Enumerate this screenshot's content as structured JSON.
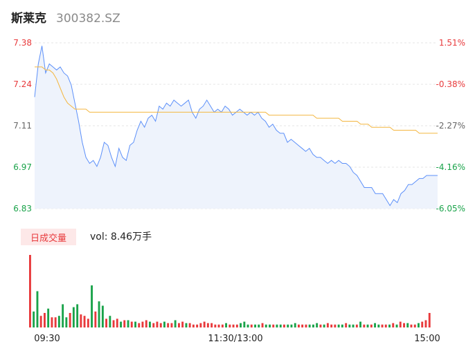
{
  "header": {
    "name": "斯莱克",
    "code": "300382.SZ"
  },
  "volume": {
    "tab_label": "日成交量",
    "summary": "vol: 8.46万手"
  },
  "colors": {
    "price_line": "#5b8ff9",
    "avg_line": "#f4b63f",
    "area_fill": "#eef3fc",
    "up": "#e8393b",
    "down": "#1aa34a",
    "grid": "#e6e6e6"
  },
  "chart_data": [
    {
      "type": "line",
      "y_left_ticks": [
        "7.38",
        "7.24",
        "7.11",
        "6.97",
        "6.83"
      ],
      "y_right_ticks": [
        "1.51%",
        "-0.38%",
        "-2.27%",
        "-4.16%",
        "-6.05%"
      ],
      "ylim": [
        6.83,
        7.38
      ],
      "x_ticks": [
        "09:30",
        "11:30/13:00",
        "15:00"
      ],
      "grid": true,
      "series": [
        {
          "values": [
            7.2,
            7.31,
            7.37,
            7.28,
            7.31,
            7.3,
            7.29,
            7.3,
            7.28,
            7.27,
            7.24,
            7.18,
            7.12,
            7.05,
            7.0,
            6.98,
            6.99,
            6.97,
            7.0,
            7.05,
            7.04,
            7.0,
            6.97,
            7.03,
            7.0,
            6.99,
            7.04,
            7.05,
            7.09,
            7.12,
            7.1,
            7.13,
            7.14,
            7.12,
            7.17,
            7.16,
            7.18,
            7.17,
            7.19,
            7.18,
            7.17,
            7.18,
            7.19,
            7.15,
            7.13,
            7.16,
            7.17,
            7.19,
            7.17,
            7.15,
            7.16,
            7.15,
            7.17,
            7.16,
            7.14,
            7.15,
            7.16,
            7.15,
            7.14,
            7.15,
            7.14,
            7.15,
            7.13,
            7.12,
            7.1,
            7.11,
            7.09,
            7.08,
            7.08,
            7.05,
            7.06,
            7.05,
            7.04,
            7.03,
            7.02,
            7.03,
            7.01,
            7.0,
            7.0,
            6.99,
            6.98,
            6.99,
            6.98,
            6.99,
            6.98,
            6.98,
            6.97,
            6.95,
            6.94,
            6.92,
            6.9,
            6.9,
            6.9,
            6.88,
            6.88,
            6.88,
            6.86,
            6.84,
            6.86,
            6.85,
            6.88,
            6.89,
            6.91,
            6.91,
            6.92,
            6.93,
            6.93,
            6.94,
            6.94,
            6.94,
            6.94
          ]
        },
        {
          "values": [
            7.3,
            7.3,
            7.3,
            7.29,
            7.29,
            7.28,
            7.26,
            7.23,
            7.2,
            7.18,
            7.17,
            7.16,
            7.16,
            7.16,
            7.16,
            7.15,
            7.15,
            7.15,
            7.15,
            7.15,
            7.15,
            7.15,
            7.15,
            7.15,
            7.15,
            7.15,
            7.15,
            7.15,
            7.15,
            7.15,
            7.15,
            7.15,
            7.15,
            7.15,
            7.15,
            7.15,
            7.15,
            7.15,
            7.15,
            7.15,
            7.15,
            7.15,
            7.15,
            7.15,
            7.15,
            7.15,
            7.15,
            7.15,
            7.15,
            7.15,
            7.15,
            7.15,
            7.15,
            7.15,
            7.15,
            7.15,
            7.15,
            7.15,
            7.15,
            7.15,
            7.15,
            7.15,
            7.15,
            7.15,
            7.14,
            7.14,
            7.14,
            7.14,
            7.14,
            7.14,
            7.14,
            7.14,
            7.14,
            7.14,
            7.14,
            7.14,
            7.14,
            7.13,
            7.13,
            7.13,
            7.13,
            7.13,
            7.13,
            7.13,
            7.12,
            7.12,
            7.12,
            7.12,
            7.12,
            7.11,
            7.11,
            7.11,
            7.1,
            7.1,
            7.1,
            7.1,
            7.1,
            7.1,
            7.09,
            7.09,
            7.09,
            7.09,
            7.09,
            7.09,
            7.09,
            7.08,
            7.08,
            7.08,
            7.08,
            7.08,
            7.08
          ]
        }
      ]
    },
    {
      "type": "bar",
      "values": [
        100,
        22,
        50,
        16,
        20,
        26,
        14,
        14,
        16,
        32,
        14,
        20,
        28,
        32,
        18,
        16,
        12,
        58,
        22,
        36,
        30,
        12,
        16,
        10,
        12,
        8,
        10,
        10,
        8,
        8,
        6,
        8,
        10,
        8,
        6,
        8,
        6,
        8,
        6,
        6,
        10,
        6,
        8,
        6,
        6,
        4,
        4,
        6,
        8,
        6,
        6,
        4,
        4,
        4,
        6,
        4,
        4,
        4,
        6,
        8,
        4,
        4,
        4,
        4,
        6,
        4,
        4,
        4,
        4,
        4,
        4,
        4,
        4,
        6,
        4,
        4,
        4,
        4,
        4,
        6,
        4,
        4,
        6,
        4,
        4,
        4,
        4,
        6,
        4,
        4,
        4,
        8,
        4,
        4,
        4,
        6,
        4,
        4,
        4,
        4,
        6,
        4,
        8,
        6,
        6,
        4,
        4,
        6,
        8,
        10,
        20
      ],
      "colors": [
        "up",
        "down",
        "down",
        "up",
        "up",
        "down",
        "up",
        "up",
        "down",
        "down",
        "down",
        "up",
        "down",
        "down",
        "up",
        "up",
        "up",
        "down",
        "up",
        "down",
        "down",
        "up",
        "down",
        "up",
        "up",
        "down",
        "up",
        "down",
        "up",
        "down",
        "up",
        "up",
        "up",
        "down",
        "up",
        "up",
        "up",
        "down",
        "up",
        "up",
        "down",
        "up",
        "up",
        "down",
        "up",
        "up",
        "up",
        "up",
        "up",
        "up",
        "up",
        "up",
        "up",
        "up",
        "down",
        "up",
        "up",
        "up",
        "down",
        "down",
        "down",
        "up",
        "down",
        "down",
        "up",
        "down",
        "down",
        "up",
        "down",
        "down",
        "up",
        "down",
        "down",
        "down",
        "up",
        "up",
        "up",
        "down",
        "down",
        "down",
        "up",
        "down",
        "up",
        "up",
        "up",
        "down",
        "down",
        "up",
        "down",
        "down",
        "up",
        "down",
        "up",
        "down",
        "up",
        "down",
        "down",
        "up",
        "up",
        "down",
        "up",
        "down",
        "up",
        "up",
        "down",
        "up",
        "up",
        "down",
        "up",
        "up",
        "up"
      ]
    }
  ]
}
